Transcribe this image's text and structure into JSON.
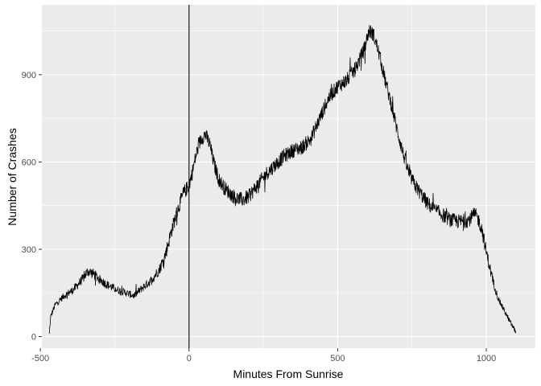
{
  "chart_data": {
    "type": "line",
    "xlabel": "Minutes From Sunrise",
    "ylabel": "Number of Crashes",
    "xlim": [
      -495,
      1165
    ],
    "ylim": [
      -40,
      1140
    ],
    "x_ticks": [
      -500,
      0,
      500,
      1000
    ],
    "x_tick_labels": [
      "-500",
      "0",
      "500",
      "1000"
    ],
    "y_ticks": [
      0,
      300,
      600,
      900
    ],
    "y_tick_labels": [
      "0",
      "300",
      "600",
      "900"
    ],
    "grid": true,
    "legend": "none",
    "panel_color": "#ebebeb",
    "grid_color": "#ffffff",
    "line_color": "#000000",
    "reference_line": {
      "orientation": "vertical",
      "x": 0,
      "color": "#000000"
    },
    "series": [
      {
        "x_start": -470,
        "x_end": 1100,
        "step": 1,
        "noise_amplitude": 25,
        "trend_points": [
          [
            -470,
            10
          ],
          [
            -465,
            70
          ],
          [
            -450,
            110
          ],
          [
            -420,
            140
          ],
          [
            -390,
            160
          ],
          [
            -360,
            195
          ],
          [
            -340,
            225
          ],
          [
            -320,
            215
          ],
          [
            -300,
            195
          ],
          [
            -270,
            175
          ],
          [
            -240,
            160
          ],
          [
            -210,
            150
          ],
          [
            -185,
            140
          ],
          [
            -160,
            165
          ],
          [
            -130,
            190
          ],
          [
            -100,
            230
          ],
          [
            -80,
            280
          ],
          [
            -60,
            360
          ],
          [
            -40,
            430
          ],
          [
            -20,
            490
          ],
          [
            0,
            520
          ],
          [
            10,
            560
          ],
          [
            25,
            630
          ],
          [
            40,
            680
          ],
          [
            55,
            695
          ],
          [
            70,
            660
          ],
          [
            85,
            590
          ],
          [
            100,
            540
          ],
          [
            120,
            510
          ],
          [
            140,
            490
          ],
          [
            160,
            475
          ],
          [
            180,
            470
          ],
          [
            200,
            480
          ],
          [
            230,
            520
          ],
          [
            260,
            560
          ],
          [
            290,
            590
          ],
          [
            320,
            620
          ],
          [
            350,
            640
          ],
          [
            380,
            650
          ],
          [
            410,
            680
          ],
          [
            440,
            750
          ],
          [
            470,
            820
          ],
          [
            500,
            860
          ],
          [
            530,
            880
          ],
          [
            560,
            920
          ],
          [
            590,
            990
          ],
          [
            605,
            1050
          ],
          [
            620,
            1040
          ],
          [
            640,
            970
          ],
          [
            660,
            880
          ],
          [
            680,
            800
          ],
          [
            700,
            710
          ],
          [
            720,
            630
          ],
          [
            740,
            560
          ],
          [
            760,
            520
          ],
          [
            780,
            490
          ],
          [
            800,
            460
          ],
          [
            820,
            440
          ],
          [
            850,
            420
          ],
          [
            880,
            400
          ],
          [
            910,
            395
          ],
          [
            940,
            400
          ],
          [
            960,
            420
          ],
          [
            970,
            410
          ],
          [
            985,
            370
          ],
          [
            1000,
            290
          ],
          [
            1020,
            200
          ],
          [
            1040,
            130
          ],
          [
            1060,
            90
          ],
          [
            1080,
            50
          ],
          [
            1100,
            15
          ]
        ]
      }
    ]
  }
}
